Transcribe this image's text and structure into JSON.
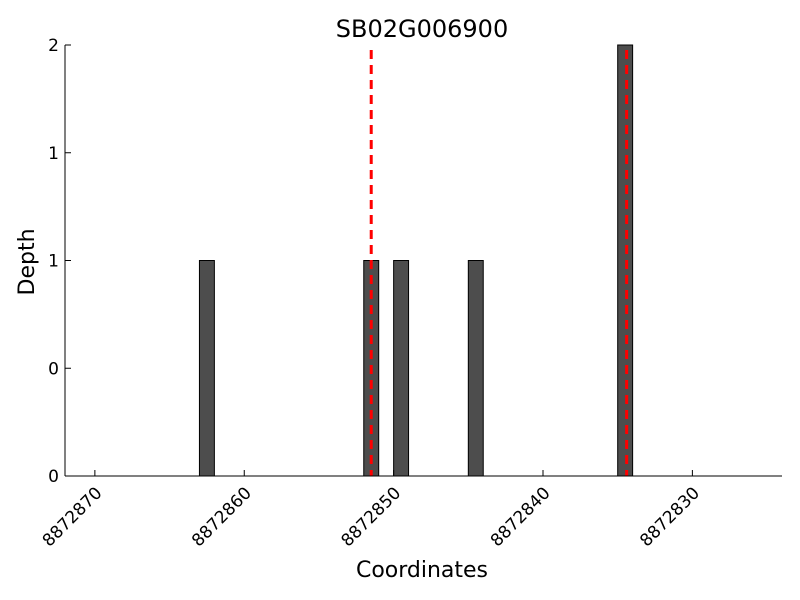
{
  "chart_data": {
    "type": "bar",
    "title": "SB02G006900",
    "xlabel": "Coordinates",
    "ylabel": "Depth",
    "xlim": [
      8872872,
      8872824
    ],
    "x_reversed": true,
    "ylim": [
      0,
      2
    ],
    "x_ticks": [
      8872870,
      8872860,
      8872850,
      8872840,
      8872830
    ],
    "y_ticks": [
      0,
      0.5,
      1,
      1.5,
      2
    ],
    "y_tick_labels": [
      "0",
      "0",
      "1",
      "1",
      "2"
    ],
    "bars": [
      {
        "start": 8872863,
        "end": 8872862,
        "value": 1
      },
      {
        "start": 8872852,
        "end": 8872851,
        "value": 1
      },
      {
        "start": 8872850,
        "end": 8872849,
        "value": 1
      },
      {
        "start": 8872845,
        "end": 8872844,
        "value": 1
      },
      {
        "start": 8872835,
        "end": 8872834,
        "value": 2
      }
    ],
    "markers": [
      8872851.5,
      8872834.4
    ],
    "bar_color": "#4d4d4d",
    "marker_color": "#ff0000",
    "grid": false
  }
}
